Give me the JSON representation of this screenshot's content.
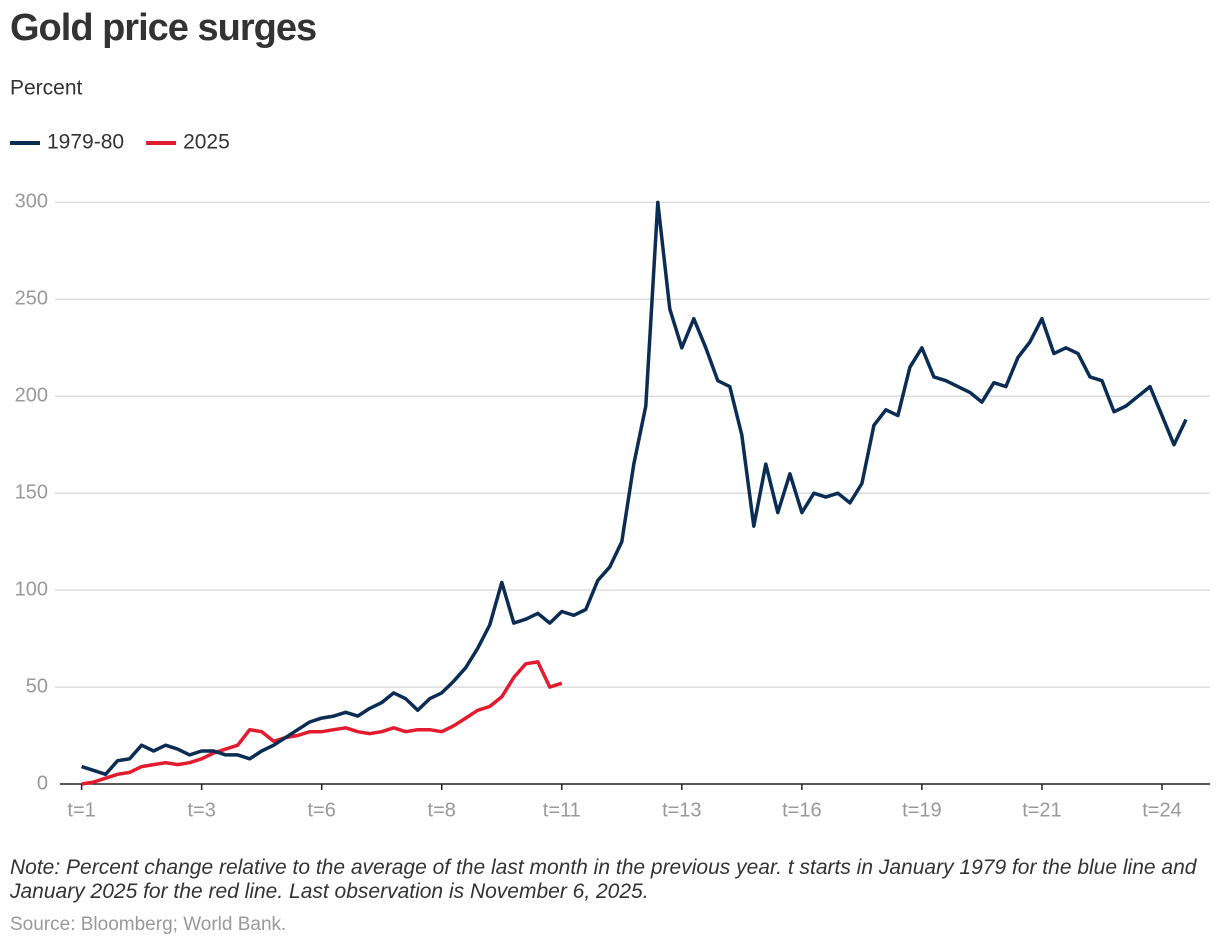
{
  "chart_data": {
    "type": "line",
    "title": "Gold price surges",
    "subtitle": "Percent",
    "note": "Note: Percent change relative to the average of the last month in the previous year. t starts in January 1979 for the blue line and January 2025 for the red line. Last observation is November 6, 2025.",
    "source": "Source: Bloomberg; World Bank.",
    "x": [
      0,
      1,
      2,
      3,
      4,
      5,
      6,
      7,
      8,
      9,
      10,
      11,
      12,
      13,
      14,
      15,
      16,
      17,
      18,
      19,
      20,
      21,
      22,
      23,
      24,
      25,
      26,
      27,
      28,
      29,
      30,
      31,
      32,
      33,
      34,
      35,
      36,
      37,
      38,
      39,
      40,
      41,
      42,
      43,
      44,
      45,
      46,
      47,
      48,
      49,
      50,
      51,
      52,
      53,
      54,
      55,
      56,
      57,
      58,
      59,
      60,
      61,
      62,
      63,
      64,
      65,
      66,
      67,
      68,
      69,
      70,
      71,
      72,
      73,
      74,
      75,
      76,
      77,
      78,
      79,
      80,
      81,
      82,
      83,
      84,
      85,
      86,
      87,
      88,
      89,
      90,
      91,
      92
    ],
    "series": [
      {
        "name": "1979-80",
        "color": "#0b2d53",
        "values": [
          9,
          7,
          5,
          12,
          13,
          20,
          17,
          20,
          18,
          15,
          17,
          17,
          15,
          15,
          13,
          17,
          20,
          24,
          28,
          32,
          34,
          35,
          37,
          35,
          39,
          42,
          47,
          44,
          38,
          44,
          47,
          53,
          60,
          70,
          82,
          104,
          83,
          85,
          88,
          83,
          89,
          87,
          90,
          105,
          112,
          125,
          165,
          195,
          300,
          245,
          225,
          240,
          225,
          208,
          205,
          180,
          133,
          165,
          140,
          160,
          140,
          150,
          148,
          150,
          145,
          155,
          185,
          193,
          190,
          215,
          225,
          210,
          208,
          205,
          202,
          197,
          207,
          205,
          220,
          228,
          240,
          222,
          225,
          222,
          210,
          208,
          192,
          195,
          200,
          205,
          190,
          175,
          188
        ]
      },
      {
        "name": "2025",
        "color": "#e31b2f",
        "values": [
          0,
          1,
          3,
          5,
          6,
          9,
          10,
          11,
          10,
          11,
          13,
          16,
          18,
          20,
          28,
          27,
          22,
          24,
          25,
          27,
          27,
          28,
          29,
          27,
          26,
          27,
          29,
          27,
          28,
          28,
          27,
          30,
          34,
          38,
          40,
          45,
          55,
          62,
          63,
          50,
          52,
          null,
          null,
          null,
          null,
          null,
          null,
          null,
          null,
          null,
          null,
          null,
          null,
          null,
          null,
          null,
          null,
          null,
          null,
          null,
          null,
          null,
          null,
          null,
          null,
          null,
          null,
          null,
          null,
          null,
          null,
          null,
          null,
          null,
          null,
          null,
          null,
          null,
          null,
          null,
          null,
          null,
          null,
          null,
          null,
          null,
          null,
          null,
          null,
          null,
          null,
          null,
          null
        ]
      }
    ],
    "xlim": [
      -1.8,
      94
    ],
    "xticks": [
      {
        "value": 0,
        "label": "t=1"
      },
      {
        "value": 10,
        "label": "t=3"
      },
      {
        "value": 20,
        "label": "t=6"
      },
      {
        "value": 30,
        "label": "t=8"
      },
      {
        "value": 40,
        "label": "t=11"
      },
      {
        "value": 50,
        "label": "t=13"
      },
      {
        "value": 60,
        "label": "t=16"
      },
      {
        "value": 70,
        "label": "t=19"
      },
      {
        "value": 80,
        "label": "t=21"
      },
      {
        "value": 90,
        "label": "t=24"
      }
    ],
    "ylim": [
      0,
      310
    ],
    "yticks": [
      0,
      50,
      100,
      150,
      200,
      250,
      300
    ],
    "grid": true
  }
}
